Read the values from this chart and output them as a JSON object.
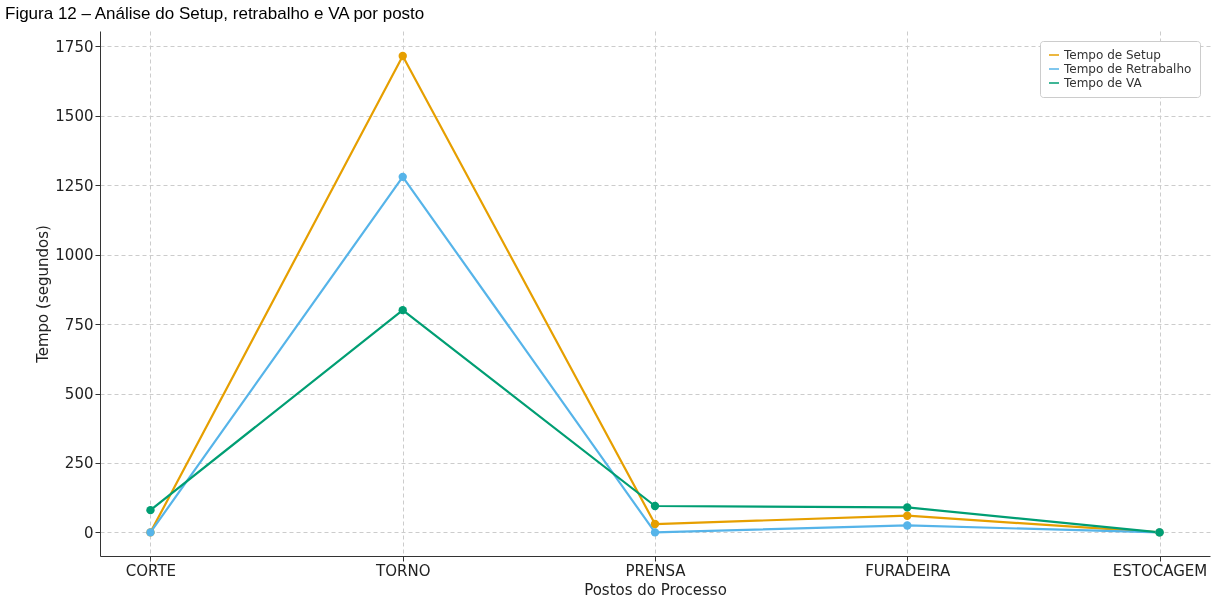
{
  "chart_data": {
    "type": "line",
    "title": "Figura 12 – Análise do Setup, retrabalho e VA por posto",
    "xlabel": "Postos do Processo",
    "ylabel": "Tempo (segundos)",
    "categories": [
      "CORTE",
      "TORNO",
      "PRENSA",
      "FURADEIRA",
      "ESTOCAGEM"
    ],
    "series": [
      {
        "name": "Tempo de Setup",
        "color": "#e69f00",
        "values": [
          0,
          1715,
          30,
          60,
          0
        ]
      },
      {
        "name": "Tempo de Retrabalho",
        "color": "#56b4e9",
        "values": [
          0,
          1280,
          0,
          25,
          0
        ]
      },
      {
        "name": "Tempo de VA",
        "color": "#009e73",
        "values": [
          80,
          800,
          95,
          90,
          0
        ]
      }
    ],
    "ylim": [
      -85,
      1805
    ],
    "yticks": [
      0,
      250,
      500,
      750,
      1000,
      1250,
      1500,
      1750
    ],
    "grid": true,
    "legend": "top right",
    "marker": "circle",
    "line_style": "solid"
  }
}
